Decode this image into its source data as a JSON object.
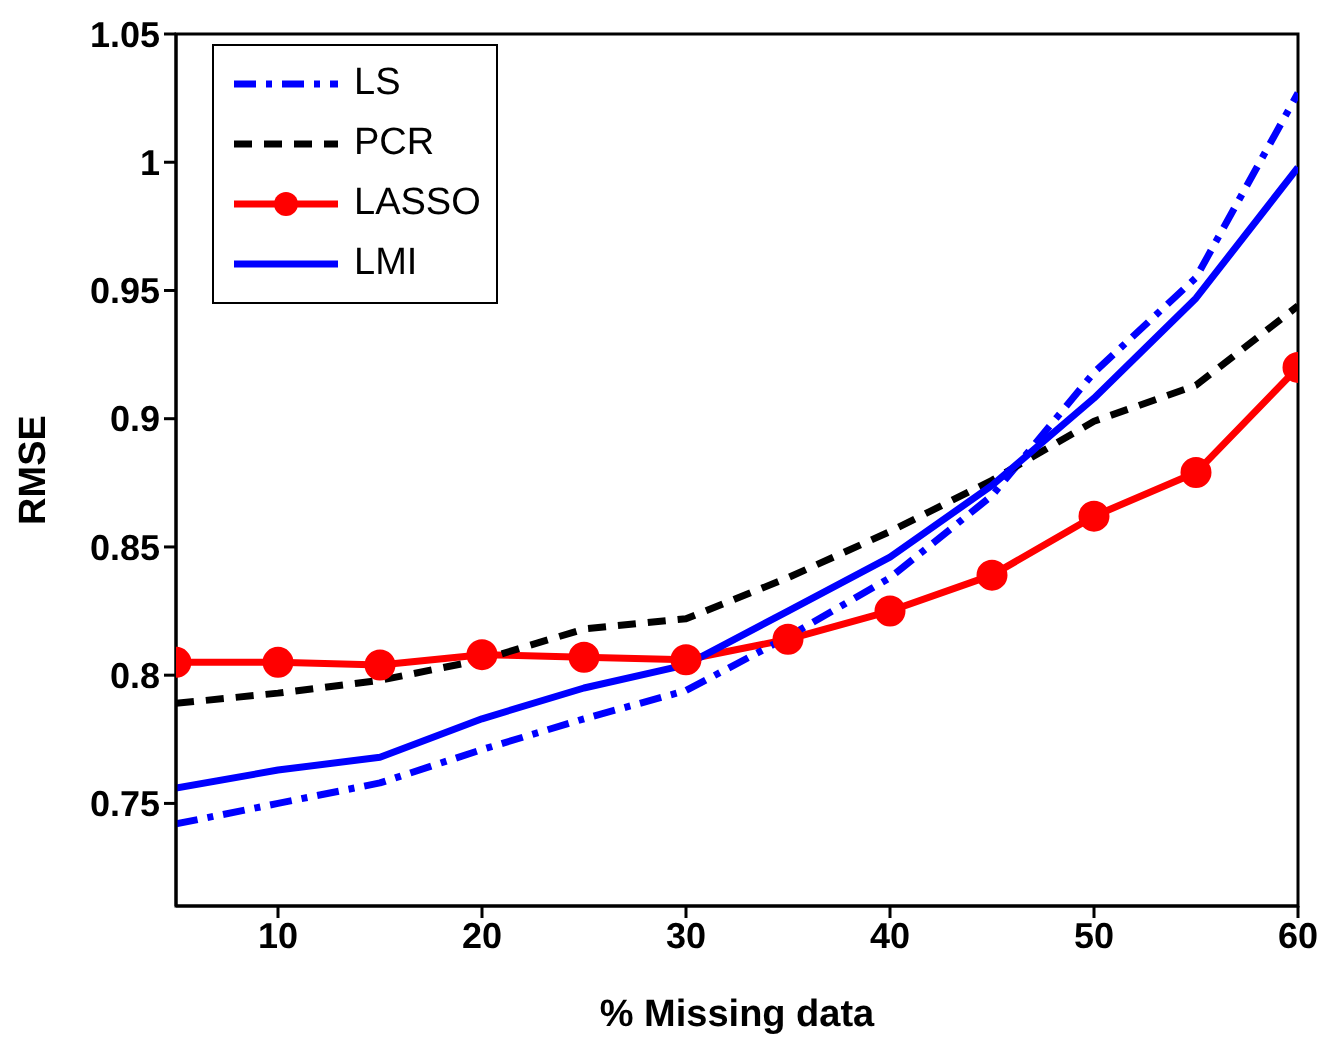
{
  "chart_data": {
    "type": "line",
    "xlabel": "% Missing data",
    "ylabel": "RMSE",
    "x": [
      5,
      10,
      15,
      20,
      25,
      30,
      35,
      40,
      45,
      50,
      55,
      60
    ],
    "xlim": [
      5,
      60
    ],
    "xticks": [
      10,
      20,
      30,
      40,
      50,
      60
    ],
    "ylim": [
      0.71,
      1.05
    ],
    "yticks": [
      0.75,
      0.8,
      0.85,
      0.9,
      0.95,
      1,
      1.05
    ],
    "grid": false,
    "legend": "top left",
    "series": [
      {
        "name": "LS",
        "color": "#0000ff",
        "line_style": "dashdot",
        "marker": "none",
        "values": [
          0.742,
          0.75,
          0.758,
          0.771,
          0.783,
          0.794,
          0.815,
          0.838,
          0.87,
          0.918,
          0.955,
          1.027
        ]
      },
      {
        "name": "PCR",
        "color": "#000000",
        "line_style": "dashed",
        "marker": "none",
        "values": [
          0.789,
          0.793,
          0.798,
          0.806,
          0.818,
          0.822,
          0.838,
          0.856,
          0.876,
          0.899,
          0.913,
          0.944
        ]
      },
      {
        "name": "LASSO",
        "color": "#ff0000",
        "line_style": "solid",
        "marker": "circle",
        "values": [
          0.805,
          0.805,
          0.804,
          0.808,
          0.807,
          0.806,
          0.814,
          0.825,
          0.839,
          0.862,
          0.879,
          0.92
        ]
      },
      {
        "name": "LMI",
        "color": "#0000ff",
        "line_style": "solid",
        "marker": "none",
        "values": [
          0.756,
          0.763,
          0.768,
          0.783,
          0.795,
          0.804,
          0.825,
          0.846,
          0.874,
          0.908,
          0.947,
          0.998
        ]
      }
    ]
  }
}
